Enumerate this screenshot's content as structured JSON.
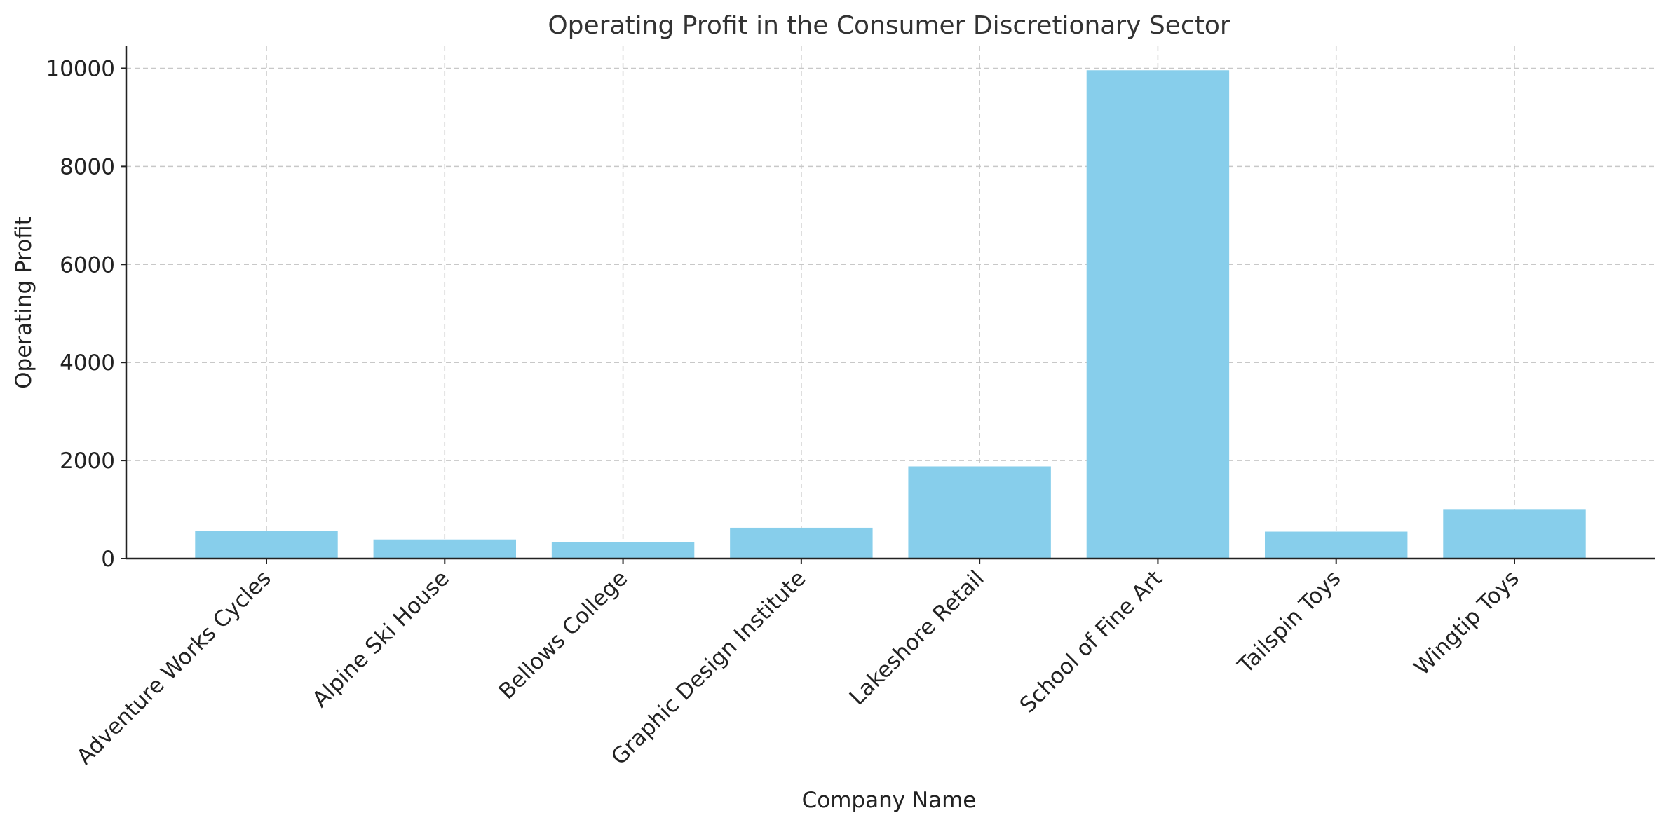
{
  "chart_data": {
    "type": "bar",
    "title": "Operating Profit in the Consumer Discretionary Sector",
    "xlabel": "Company Name",
    "ylabel": "Operating Profit",
    "categories": [
      "Adventure Works Cycles",
      "Alpine Ski House",
      "Bellows College",
      "Graphic Design Institute",
      "Lakeshore Retail",
      "School of Fine Art",
      "Tailspin Toys",
      "Wingtip Toys"
    ],
    "values": [
      560,
      390,
      330,
      630,
      1880,
      9960,
      550,
      1010
    ],
    "ylim": [
      0,
      10450
    ],
    "yticks": [
      0,
      2000,
      4000,
      6000,
      8000,
      10000
    ],
    "grid": true,
    "bar_color": "#87CEEB"
  }
}
